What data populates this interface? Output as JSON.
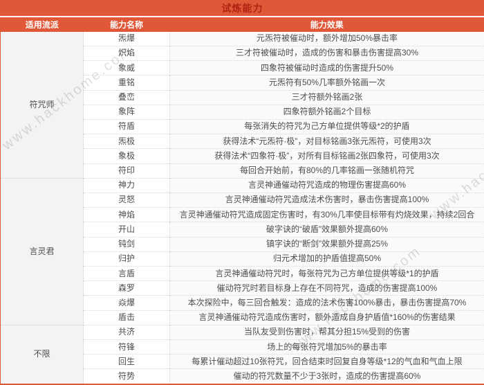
{
  "title": "试炼能力",
  "columns": [
    "适用流派",
    "能力名称",
    "能力效果"
  ],
  "watermark": "www.hackhome.com",
  "colors": {
    "header_bg": "#e15839",
    "title_text": "#b02412",
    "header_text": "#ffffff",
    "body_text": "#4d4d4d",
    "frame": "#e15839",
    "dotted_border": "#d9d9d9"
  },
  "groups": [
    {
      "school": "符咒师",
      "abilities": [
        {
          "name": "炁爆",
          "effect": "元炁符被催动时，额外增加50%暴击率"
        },
        {
          "name": "炽焰",
          "effect": "三才符被催动时，造成的伤害和暴击伤害提高30%"
        },
        {
          "name": "象威",
          "effect": "四象符被催动时造成的伤害提升50%"
        },
        {
          "name": "重铭",
          "effect": "元炁符有50%几率额外铭画一次"
        },
        {
          "name": "叠峦",
          "effect": "三才符额外铭画2张"
        },
        {
          "name": "象阵",
          "effect": "四象符额外铭画2个目标"
        },
        {
          "name": "符盾",
          "effect": "每张消失的符咒为己方单位提供等级*2的护盾"
        },
        {
          "name": "炁极",
          "effect": "获得法术“元炁符·极”，对目标铭画3张元炁符，可使用3次"
        },
        {
          "name": "象极",
          "effect": "获得法术“四象符·极”，对所有目标铭画2张四象符，可使用3次"
        },
        {
          "name": "符印",
          "effect": "每回合开始前，有80%的几率铭画一张随机符咒"
        }
      ]
    },
    {
      "school": "言灵君",
      "abilities": [
        {
          "name": "神力",
          "effect": "言灵神通催动符咒造成的物理伤害提高60%"
        },
        {
          "name": "灵怒",
          "effect": "言灵神通催动符咒造成法术伤害时，暴击伤害提高100%"
        },
        {
          "name": "神焰",
          "effect": "言灵神通催动符咒造成固定伤害时，有30%几率使目标带有灼烧效果，持续2回合"
        },
        {
          "name": "开山",
          "effect": "破字诀的“破盾”效果额外提高60%"
        },
        {
          "name": "钝剑",
          "effect": "镇字诀的“断剑”效果额外提高25%"
        },
        {
          "name": "归护",
          "effect": "归元术增加的护盾值提高50%"
        },
        {
          "name": "言盾",
          "effect": "言灵神通催动符咒时，每张符咒为己方单位提供等级*1的护盾"
        },
        {
          "name": "森罗",
          "effect": "催动符咒时若目标身上存在不同符咒，造成的伤害提高100%"
        },
        {
          "name": "焱爆",
          "effect": "本次探险中，每三回合触发：造成的法术伤害100%暴击，暴击伤害提高70%"
        },
        {
          "name": "盾击",
          "effect": "言灵神通催动符咒造成伤害时，额外造成自身护盾值*160%的伤害结果"
        }
      ]
    },
    {
      "school": "不限",
      "abilities": [
        {
          "name": "共济",
          "effect": "当队友受到伤害时，帮其分担15%受到的伤害"
        },
        {
          "name": "符锋",
          "effect": "场上的每张符咒增加5%的暴击率"
        },
        {
          "name": "回生",
          "effect": "每累计催动超过10张符咒，回合结束时回复自身等级*12的气血和气血上限"
        },
        {
          "name": "符势",
          "effect": "催动的符咒数量不少于3张时，造成的伤害提高60%"
        }
      ]
    }
  ]
}
